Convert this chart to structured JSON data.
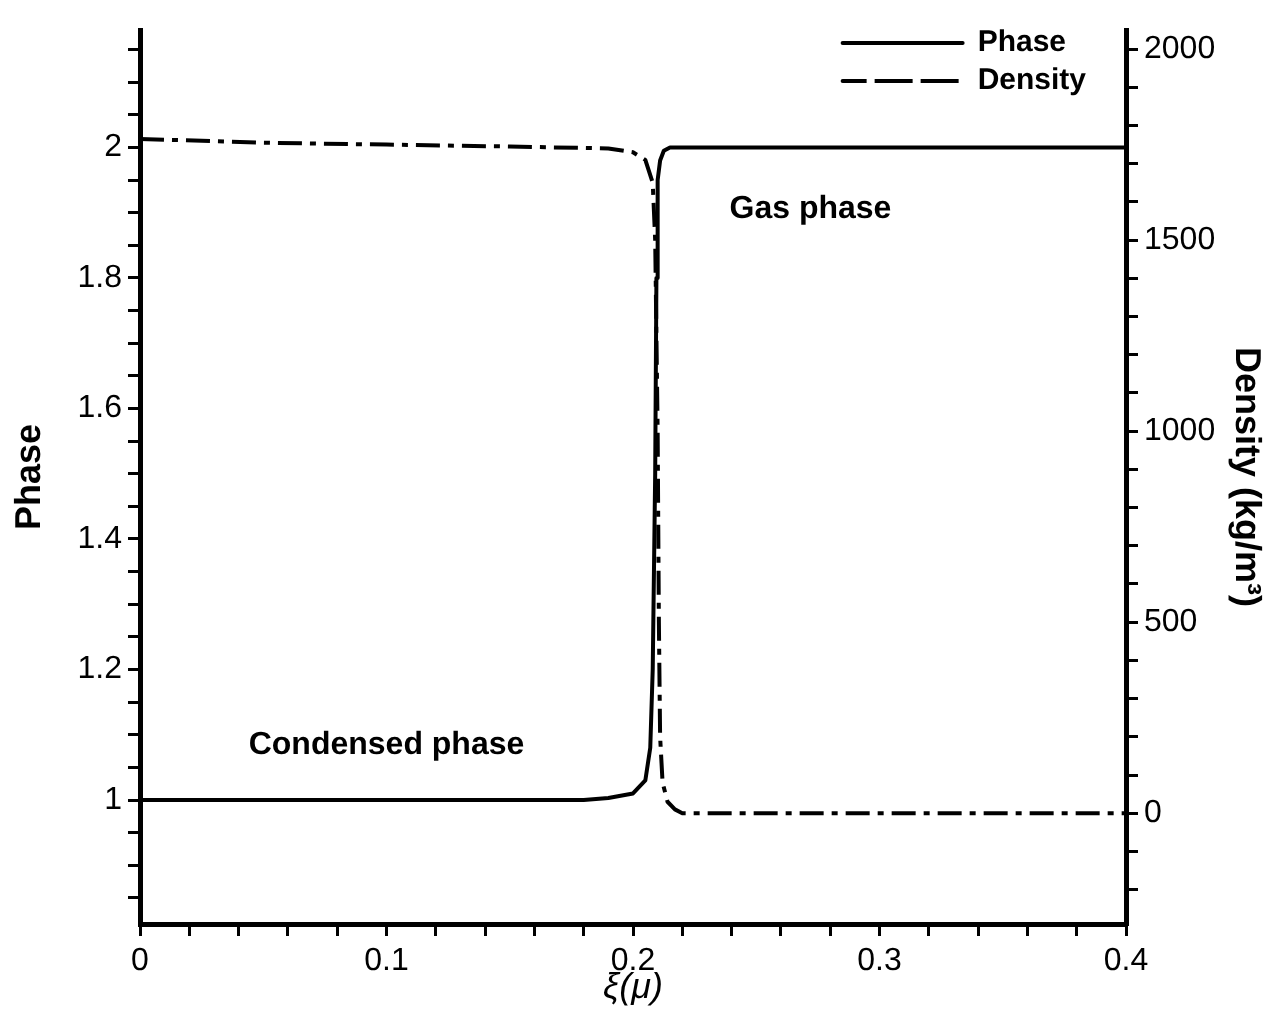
{
  "chart_data": {
    "type": "line",
    "xlabel": "ξ(μ)",
    "ylabel": "Phase",
    "y2label": "Density (kg/m³)",
    "xlim": [
      0,
      0.4
    ],
    "xticks": [
      0,
      {
        "value": 0.02,
        "label": null
      },
      {
        "value": 0.04,
        "label": null
      },
      {
        "value": 0.06,
        "label": null
      },
      {
        "value": 0.08,
        "label": null
      },
      0.1,
      {
        "value": 0.12,
        "label": null
      },
      {
        "value": 0.14,
        "label": null
      },
      {
        "value": 0.16,
        "label": null
      },
      {
        "value": 0.18,
        "label": null
      },
      0.2,
      {
        "value": 0.22,
        "label": null
      },
      {
        "value": 0.24,
        "label": null
      },
      {
        "value": 0.26,
        "label": null
      },
      {
        "value": 0.28,
        "label": null
      },
      0.3,
      {
        "value": 0.32,
        "label": null
      },
      {
        "value": 0.34,
        "label": null
      },
      {
        "value": 0.36,
        "label": null
      },
      {
        "value": 0.38,
        "label": null
      },
      0.4
    ],
    "ylim": [
      0.81,
      2.18
    ],
    "yticks": [
      {
        "value": 0.85,
        "label": null
      },
      {
        "value": 0.9,
        "label": null
      },
      {
        "value": 0.95,
        "label": null
      },
      1,
      {
        "value": 1.05,
        "label": null
      },
      {
        "value": 1.1,
        "label": null
      },
      {
        "value": 1.15,
        "label": null
      },
      1.2,
      {
        "value": 1.25,
        "label": null
      },
      {
        "value": 1.3,
        "label": null
      },
      {
        "value": 1.35,
        "label": null
      },
      1.4,
      {
        "value": 1.45,
        "label": null
      },
      {
        "value": 1.5,
        "label": null
      },
      {
        "value": 1.55,
        "label": null
      },
      1.6,
      {
        "value": 1.65,
        "label": null
      },
      {
        "value": 1.7,
        "label": null
      },
      {
        "value": 1.75,
        "label": null
      },
      1.8,
      {
        "value": 1.85,
        "label": null
      },
      {
        "value": 1.9,
        "label": null
      },
      {
        "value": 1.95,
        "label": null
      },
      2,
      {
        "value": 2.05,
        "label": null
      },
      {
        "value": 2.1,
        "label": null
      },
      {
        "value": 2.15,
        "label": null
      }
    ],
    "y2lim": [
      -290,
      2050
    ],
    "y2ticks": [
      {
        "value": -200,
        "label": null
      },
      {
        "value": -100,
        "label": null
      },
      0,
      {
        "value": 100,
        "label": null
      },
      {
        "value": 200,
        "label": null
      },
      {
        "value": 300,
        "label": null
      },
      {
        "value": 400,
        "label": null
      },
      500,
      {
        "value": 600,
        "label": null
      },
      {
        "value": 700,
        "label": null
      },
      {
        "value": 800,
        "label": null
      },
      {
        "value": 900,
        "label": null
      },
      1000,
      {
        "value": 1100,
        "label": null
      },
      {
        "value": 1200,
        "label": null
      },
      {
        "value": 1300,
        "label": null
      },
      {
        "value": 1400,
        "label": null
      },
      1500,
      {
        "value": 1600,
        "label": null
      },
      {
        "value": 1700,
        "label": null
      },
      {
        "value": 1800,
        "label": null
      },
      {
        "value": 1900,
        "label": null
      },
      2000
    ],
    "grid": false,
    "legend": "top right",
    "marker": "none",
    "series": [
      {
        "name": "Phase",
        "color": "#000000",
        "line_style": "solid",
        "x": [
          0,
          0.05,
          0.1,
          0.15,
          0.18,
          0.19,
          0.2,
          0.205,
          0.207,
          0.208,
          0.209,
          0.2095,
          0.21,
          0.211,
          0.2125,
          0.215,
          0.25,
          0.3,
          0.35,
          0.4
        ],
        "values": [
          1,
          1,
          1,
          1,
          1,
          1.003,
          1.01,
          1.03,
          1.08,
          1.2,
          1.5,
          1.8,
          1.95,
          1.98,
          1.995,
          2,
          2,
          2,
          2,
          2
        ]
      },
      {
        "name": "Density",
        "color": "#000000",
        "line_style": "dashdot",
        "axis": "y2",
        "x": [
          0,
          0.05,
          0.1,
          0.15,
          0.19,
          0.2,
          0.205,
          0.208,
          0.209,
          0.21,
          0.2105,
          0.211,
          0.212,
          0.214,
          0.217,
          0.22,
          0.25,
          0.3,
          0.35,
          0.4
        ],
        "values": [
          1765,
          1755,
          1750,
          1745,
          1740,
          1730,
          1710,
          1650,
          1500,
          1000,
          500,
          200,
          80,
          30,
          10,
          0,
          0,
          0,
          0,
          0
        ]
      }
    ],
    "annotations": [
      "Condensed phase",
      "Gas phase"
    ]
  }
}
